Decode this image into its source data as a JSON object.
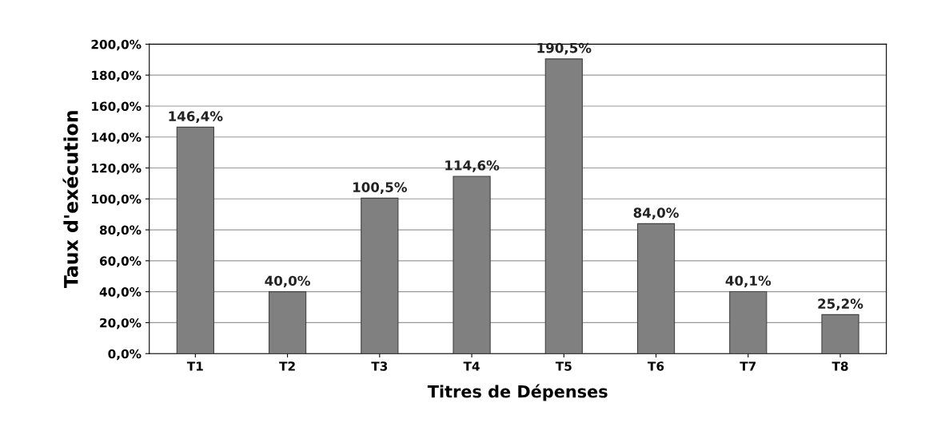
{
  "chart_data": {
    "type": "bar",
    "xlabel": "Titres de Dépenses",
    "ylabel": "Taux d'exécution",
    "categories": [
      "T1",
      "T2",
      "T3",
      "T4",
      "T5",
      "T6",
      "T7",
      "T8"
    ],
    "values": [
      146.4,
      40.0,
      100.5,
      114.6,
      190.5,
      84.0,
      40.1,
      25.2
    ],
    "value_labels": [
      "146,4%",
      "40,0%",
      "100,5%",
      "114,6%",
      "190,5%",
      "84,0%",
      "40,1%",
      "25,2%"
    ],
    "color": "#808080",
    "ylim": [
      0,
      200
    ],
    "yticks": [
      {
        "value": 0,
        "label": "0,0%"
      },
      {
        "value": 20,
        "label": "20,0%"
      },
      {
        "value": 40,
        "label": "40,0%"
      },
      {
        "value": 60,
        "label": "60,0%"
      },
      {
        "value": 80,
        "label": "80,0%"
      },
      {
        "value": 100,
        "label": "100,0%"
      },
      {
        "value": 120,
        "label": "120,0%"
      },
      {
        "value": 140,
        "label": "140,0%"
      },
      {
        "value": 160,
        "label": "160,0%"
      },
      {
        "value": 180,
        "label": "180,0%"
      },
      {
        "value": 200,
        "label": "200,0%"
      }
    ],
    "grid": "y"
  }
}
